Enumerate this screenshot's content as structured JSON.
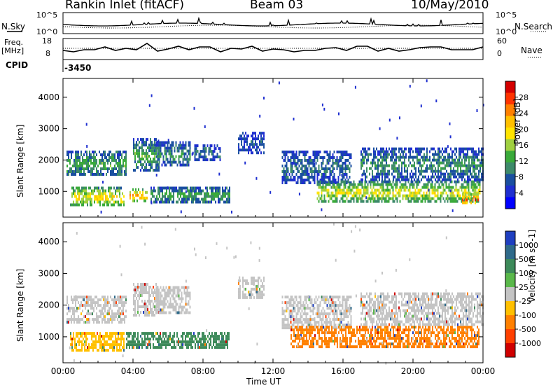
{
  "header": {
    "station": "Rankin Inlet (fitACF)",
    "beam": "Beam 03",
    "date": "10/May/2010"
  },
  "top_panels": {
    "nsky_label": "N.Sky",
    "nsky_ticks": [
      "10^5",
      "10^0"
    ],
    "nsearch_label": "N.Search",
    "nsearch_ticks": [
      "10^5",
      "10^0"
    ],
    "freq_label_line1": "Freq.",
    "freq_label_line2": "[MHz]",
    "freq_ticks": [
      "18",
      "8"
    ],
    "nave_label": "Nave",
    "nave_ticks": [
      "60",
      "0"
    ],
    "cpid_label": "CPID",
    "cpid_value": "-3450"
  },
  "colorbars": {
    "power": {
      "label": "Power [dB]",
      "ticks": [
        "28",
        "24",
        "20",
        "16",
        "12",
        "8",
        "4"
      ],
      "colors": [
        "#d40000",
        "#ff3300",
        "#ff8000",
        "#ffc000",
        "#ffe400",
        "#a0d040",
        "#3aaa3a",
        "#3d8a6a",
        "#1a4fa0",
        "#1f2fd0",
        "#0000ff"
      ]
    },
    "velocity": {
      "label": "Velocity [m s^-1]",
      "ticks": [
        "1000",
        "500",
        "100",
        "25",
        "-25",
        "-100",
        "-500",
        "-1000"
      ],
      "colors": [
        "#1f3fc0",
        "#2f6a8a",
        "#3d8a5a",
        "#5ab84a",
        "#c4c4c4",
        "#ffc000",
        "#ff8000",
        "#ff4000",
        "#d00000"
      ]
    }
  },
  "x_axis": {
    "label": "Time UT",
    "ticks": [
      "00:00",
      "04:00",
      "08:00",
      "12:00",
      "16:00",
      "20:00",
      "00:00"
    ]
  },
  "chart_data": [
    {
      "type": "heatmap",
      "name": "Power",
      "ylabel": "Slant Range [km]",
      "xlabel": "",
      "x_range_hours": [
        0,
        24
      ],
      "ylim": [
        180,
        4600
      ],
      "y_ticks": [
        1000,
        2000,
        3000,
        4000
      ],
      "colorbar_label": "Power [dB]",
      "colorbar_range": [
        0,
        32
      ],
      "bands": [
        {
          "t0": 0.4,
          "t1": 3.5,
          "r0": 550,
          "r1": 1150,
          "level": 20
        },
        {
          "t0": 0.2,
          "t1": 3.6,
          "r0": 1500,
          "r1": 2300,
          "level": 12
        },
        {
          "t0": 3.8,
          "t1": 4.8,
          "r0": 700,
          "r1": 1100,
          "level": 24
        },
        {
          "t0": 4.0,
          "t1": 5.5,
          "r0": 1650,
          "r1": 2700,
          "level": 12
        },
        {
          "t0": 5.3,
          "t1": 7.3,
          "r0": 1800,
          "r1": 2600,
          "level": 10
        },
        {
          "t0": 5.0,
          "t1": 9.5,
          "r0": 700,
          "r1": 1150,
          "level": 12
        },
        {
          "t0": 7.5,
          "t1": 9.0,
          "r0": 2000,
          "r1": 2500,
          "level": 8
        },
        {
          "t0": 10.0,
          "t1": 11.5,
          "r0": 2200,
          "r1": 2900,
          "level": 6
        },
        {
          "t0": 12.5,
          "t1": 16.5,
          "r0": 1300,
          "r1": 2300,
          "level": 8
        },
        {
          "t0": 14.5,
          "t1": 23.8,
          "r0": 650,
          "r1": 1350,
          "level": 18
        },
        {
          "t0": 17.0,
          "t1": 24.0,
          "r0": 1400,
          "r1": 2400,
          "level": 10
        },
        {
          "t0": 22.8,
          "t1": 23.7,
          "r0": 600,
          "r1": 950,
          "level": 28
        }
      ]
    },
    {
      "type": "heatmap",
      "name": "Velocity",
      "ylabel": "Slant Range [km]",
      "xlabel": "Time UT",
      "x_range_hours": [
        0,
        24
      ],
      "ylim": [
        180,
        4600
      ],
      "y_ticks": [
        1000,
        2000,
        3000,
        4000
      ],
      "colorbar_label": "Velocity [m s^-1]",
      "bands": [
        {
          "t0": 0.4,
          "t1": 3.5,
          "r0": 550,
          "r1": 1150,
          "level": "-100"
        },
        {
          "t0": 0.2,
          "t1": 3.6,
          "r0": 1500,
          "r1": 2300,
          "level": "25"
        },
        {
          "t0": 3.6,
          "t1": 6.0,
          "r0": 650,
          "r1": 1150,
          "level": "100"
        },
        {
          "t0": 4.0,
          "t1": 5.5,
          "r0": 1650,
          "r1": 2700,
          "level": "25"
        },
        {
          "t0": 5.3,
          "t1": 7.3,
          "r0": 1800,
          "r1": 2600,
          "level": "25"
        },
        {
          "t0": 6.0,
          "t1": 9.5,
          "r0": 700,
          "r1": 1150,
          "level": "100"
        },
        {
          "t0": 10.0,
          "t1": 11.5,
          "r0": 2200,
          "r1": 2900,
          "level": "25"
        },
        {
          "t0": 12.5,
          "t1": 16.5,
          "r0": 1300,
          "r1": 2300,
          "level": "25"
        },
        {
          "t0": 13.0,
          "t1": 23.8,
          "r0": 650,
          "r1": 1350,
          "level": "-500"
        },
        {
          "t0": 17.0,
          "t1": 24.0,
          "r0": 1400,
          "r1": 2400,
          "level": "25"
        }
      ]
    }
  ]
}
